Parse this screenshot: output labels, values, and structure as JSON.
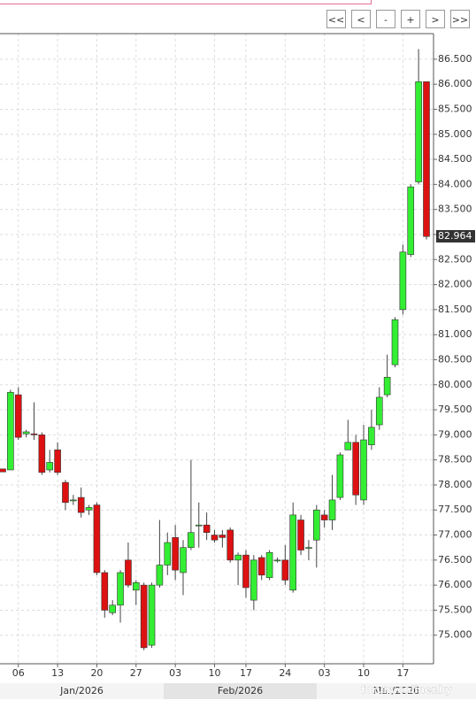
{
  "buttons": [
    "<<",
    "<",
    "-",
    "+",
    ">",
    ">>"
  ],
  "chart_data": {
    "type": "candlestick",
    "categories": [
      null,
      null,
      "06",
      null,
      null,
      null,
      null,
      "13",
      null,
      null,
      null,
      null,
      "20",
      null,
      null,
      null,
      null,
      "27",
      null,
      null,
      null,
      null,
      "03",
      null,
      null,
      null,
      null,
      "10",
      null,
      null,
      null,
      "17",
      null,
      null,
      null,
      null,
      "24",
      null,
      null,
      null,
      null,
      "03",
      null,
      null,
      null,
      null,
      "10",
      null,
      null,
      null,
      null,
      "17",
      null,
      null,
      null
    ],
    "open": [
      78.32,
      78.3,
      79.8,
      79.02,
      79.02,
      79.0,
      78.3,
      78.7,
      78.05,
      77.7,
      77.75,
      77.5,
      77.6,
      76.25,
      75.45,
      75.6,
      76.5,
      75.9,
      76.0,
      74.8,
      76.0,
      76.4,
      76.95,
      76.25,
      76.75,
      77.2,
      77.2,
      77.0,
      77.0,
      77.1,
      76.5,
      76.6,
      75.7,
      76.55,
      76.15,
      76.5,
      76.5,
      75.9,
      77.3,
      76.75,
      76.9,
      77.4,
      77.3,
      77.75,
      78.7,
      78.85,
      77.7,
      78.8,
      79.2,
      79.8,
      80.4,
      81.5,
      82.6,
      84.05,
      86.05
    ],
    "high": [
      78.32,
      79.9,
      79.95,
      79.1,
      79.65,
      79.05,
      78.7,
      78.85,
      78.1,
      77.8,
      77.95,
      77.6,
      77.65,
      76.3,
      75.7,
      76.3,
      76.85,
      76.1,
      76.05,
      76.05,
      77.3,
      77.05,
      77.2,
      76.9,
      78.5,
      77.65,
      77.45,
      77.1,
      77.1,
      77.15,
      76.65,
      76.7,
      76.6,
      76.6,
      76.7,
      76.55,
      76.8,
      77.65,
      77.4,
      76.9,
      77.6,
      77.5,
      78.2,
      78.65,
      79.3,
      79.0,
      79.2,
      79.5,
      79.95,
      80.6,
      81.35,
      82.8,
      84.0,
      86.7,
      86.05
    ],
    "low": [
      78.26,
      78.3,
      78.9,
      78.95,
      78.9,
      78.2,
      78.25,
      78.2,
      77.5,
      77.6,
      77.35,
      77.4,
      76.2,
      75.35,
      75.4,
      75.25,
      75.95,
      75.6,
      74.7,
      74.75,
      75.95,
      76.2,
      76.1,
      75.8,
      76.7,
      76.75,
      76.9,
      76.85,
      76.75,
      76.45,
      76.0,
      75.75,
      75.5,
      76.1,
      76.1,
      76.45,
      76.0,
      75.85,
      76.6,
      76.5,
      76.35,
      77.15,
      77.1,
      77.7,
      78.7,
      77.6,
      77.6,
      78.7,
      79.1,
      79.75,
      80.35,
      81.4,
      82.55,
      84.0,
      82.9
    ],
    "close": [
      78.26,
      79.85,
      78.95,
      79.06,
      79.0,
      78.25,
      78.45,
      78.25,
      77.65,
      77.7,
      77.45,
      77.55,
      76.25,
      75.5,
      75.6,
      76.25,
      76.0,
      76.05,
      74.75,
      76.0,
      76.4,
      76.85,
      76.3,
      76.75,
      77.05,
      77.2,
      77.05,
      76.9,
      76.95,
      76.5,
      76.6,
      75.95,
      76.5,
      76.2,
      76.65,
      76.5,
      76.1,
      77.4,
      76.7,
      76.75,
      77.5,
      77.3,
      77.7,
      78.6,
      78.85,
      77.8,
      78.9,
      79.15,
      79.75,
      80.15,
      81.3,
      82.65,
      83.95,
      86.05,
      82.96
    ],
    "up_color": "#33ee33",
    "down_color": "#dd1111",
    "ylim": [
      74.43,
      87.01
    ],
    "yticks": [
      {
        "value": 75,
        "label": "75.000"
      },
      {
        "value": 75.5,
        "label": "75.500"
      },
      {
        "value": 76,
        "label": "76.000"
      },
      {
        "value": 76.5,
        "label": "76.500"
      },
      {
        "value": 77,
        "label": "77.000"
      },
      {
        "value": 77.5,
        "label": "77.500"
      },
      {
        "value": 78,
        "label": "78.000"
      },
      {
        "value": 78.5,
        "label": "78.500"
      },
      {
        "value": 79,
        "label": "79.000"
      },
      {
        "value": 79.5,
        "label": "79.500"
      },
      {
        "value": 80,
        "label": "80.000"
      },
      {
        "value": 80.5,
        "label": "80.500"
      },
      {
        "value": 81,
        "label": "81.000"
      },
      {
        "value": 81.5,
        "label": "81.500"
      },
      {
        "value": 82,
        "label": "82.000"
      },
      {
        "value": 82.5,
        "label": "82.500"
      },
      {
        "value": 83,
        "label": "83.000"
      },
      {
        "value": 83.5,
        "label": "83.500"
      },
      {
        "value": 84,
        "label": "84.000"
      },
      {
        "value": 84.5,
        "label": "84.500"
      },
      {
        "value": 85,
        "label": "85.000"
      },
      {
        "value": 85.5,
        "label": "85.500"
      },
      {
        "value": 86,
        "label": "86.000"
      },
      {
        "value": 86.5,
        "label": "86.500"
      }
    ],
    "last_price": 82.964,
    "months": [
      "Jan/2026",
      "Feb/2026",
      "Mar/2026"
    ],
    "grid": true,
    "watermark": "forum.onliner.by"
  }
}
